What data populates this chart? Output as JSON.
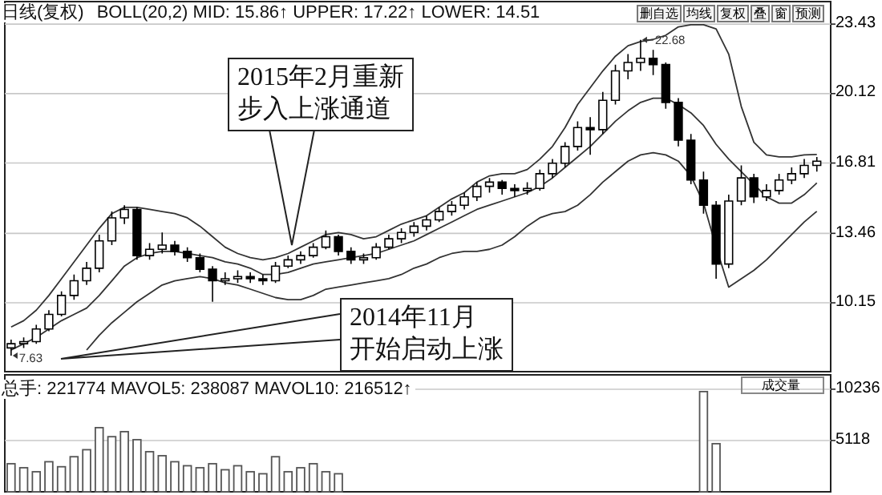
{
  "chart_data": [
    {
      "type": "candlestick",
      "title": "日线(复权)",
      "subtitle": "BOLL(20,2) MID: 15.86↑ UPPER: 17.22↑ LOWER: 14.51",
      "color": "#000000",
      "categories": [
        null,
        null,
        null,
        null,
        null,
        null,
        null,
        null,
        null,
        null,
        null,
        null,
        null,
        null,
        null,
        null,
        null,
        null,
        null,
        null,
        null,
        null,
        null,
        null,
        null,
        null,
        null,
        null,
        null,
        null,
        null,
        null,
        null,
        null,
        null,
        null,
        null,
        null,
        null,
        null,
        null,
        null,
        null,
        null,
        null,
        null,
        null,
        null,
        null,
        null,
        null,
        null,
        null,
        null,
        null,
        null,
        null,
        null,
        null,
        null,
        null,
        null,
        null,
        null,
        null
      ],
      "ohlc": [
        [
          8.0,
          8.4,
          7.63,
          8.2
        ],
        [
          8.2,
          8.5,
          8.0,
          8.3
        ],
        [
          8.3,
          9.1,
          8.2,
          8.9
        ],
        [
          8.9,
          9.8,
          8.8,
          9.6
        ],
        [
          9.6,
          10.7,
          9.5,
          10.5
        ],
        [
          10.5,
          11.5,
          10.3,
          11.2
        ],
        [
          11.2,
          12.1,
          11.0,
          11.8
        ],
        [
          11.8,
          13.4,
          11.6,
          13.1
        ],
        [
          13.1,
          14.5,
          12.9,
          14.2
        ],
        [
          14.2,
          14.8,
          13.9,
          14.6
        ],
        [
          14.6,
          14.7,
          12.2,
          12.4
        ],
        [
          12.4,
          13.0,
          12.2,
          12.7
        ],
        [
          12.7,
          13.5,
          12.5,
          12.9
        ],
        [
          12.9,
          13.1,
          12.4,
          12.6
        ],
        [
          12.6,
          12.8,
          12.1,
          12.3
        ],
        [
          12.3,
          12.5,
          11.6,
          11.75
        ],
        [
          11.75,
          11.9,
          10.2,
          11.2
        ],
        [
          11.2,
          11.6,
          11.0,
          11.3
        ],
        [
          11.3,
          11.7,
          11.1,
          11.4
        ],
        [
          11.4,
          11.6,
          11.1,
          11.3
        ],
        [
          11.3,
          11.5,
          11.0,
          11.2
        ],
        [
          11.2,
          12.1,
          11.1,
          11.9
        ],
        [
          11.9,
          12.4,
          11.8,
          12.2
        ],
        [
          12.2,
          12.6,
          12.0,
          12.4
        ],
        [
          12.4,
          13.0,
          12.3,
          12.8
        ],
        [
          12.8,
          13.6,
          12.7,
          13.3
        ],
        [
          13.3,
          13.4,
          12.4,
          12.6
        ],
        [
          12.6,
          12.8,
          12.0,
          12.2
        ],
        [
          12.2,
          12.5,
          12.0,
          12.3
        ],
        [
          12.3,
          13.0,
          12.2,
          12.8
        ],
        [
          12.8,
          13.4,
          12.7,
          13.2
        ],
        [
          13.2,
          13.7,
          13.0,
          13.5
        ],
        [
          13.5,
          14.0,
          13.3,
          13.8
        ],
        [
          13.8,
          14.3,
          13.6,
          14.1
        ],
        [
          14.1,
          14.7,
          14.0,
          14.5
        ],
        [
          14.5,
          15.0,
          14.3,
          14.8
        ],
        [
          14.8,
          15.4,
          14.6,
          15.2
        ],
        [
          15.2,
          15.9,
          15.0,
          15.7
        ],
        [
          15.7,
          16.1,
          15.4,
          15.9
        ],
        [
          15.9,
          16.0,
          15.3,
          15.6
        ],
        [
          15.6,
          15.8,
          15.2,
          15.5
        ],
        [
          15.5,
          15.9,
          15.3,
          15.6
        ],
        [
          15.6,
          16.5,
          15.5,
          16.3
        ],
        [
          16.3,
          17.0,
          16.1,
          16.8
        ],
        [
          16.8,
          17.8,
          16.6,
          17.6
        ],
        [
          17.6,
          18.8,
          17.4,
          18.5
        ],
        [
          18.5,
          19.0,
          17.2,
          18.4
        ],
        [
          18.4,
          20.2,
          18.2,
          19.8
        ],
        [
          19.8,
          21.5,
          19.6,
          21.2
        ],
        [
          21.2,
          22.0,
          20.8,
          21.6
        ],
        [
          21.6,
          22.68,
          21.2,
          21.8
        ],
        [
          21.8,
          22.2,
          21.0,
          21.5
        ],
        [
          21.5,
          21.6,
          19.4,
          19.7
        ],
        [
          19.7,
          19.9,
          17.6,
          17.9
        ],
        [
          17.9,
          18.2,
          15.8,
          16.0
        ],
        [
          16.0,
          16.4,
          14.4,
          14.8
        ],
        [
          14.8,
          15.0,
          11.3,
          12.0
        ],
        [
          12.0,
          15.3,
          11.8,
          15.0
        ],
        [
          15.0,
          16.7,
          14.8,
          16.1
        ],
        [
          16.1,
          16.3,
          14.9,
          15.2
        ],
        [
          15.2,
          15.8,
          15.0,
          15.5
        ],
        [
          15.5,
          16.3,
          15.3,
          16.0
        ],
        [
          16.0,
          16.6,
          15.8,
          16.3
        ],
        [
          16.3,
          17.0,
          16.1,
          16.7
        ],
        [
          16.7,
          17.1,
          16.4,
          16.9
        ]
      ],
      "series": [
        {
          "type": "line",
          "color": "#333333",
          "values": [
            9.0,
            9.3,
            9.8,
            10.5,
            11.3,
            12.1,
            12.9,
            13.7,
            14.4,
            14.7,
            14.7,
            14.6,
            14.5,
            14.4,
            14.2,
            13.8,
            13.3,
            12.8,
            12.5,
            12.3,
            12.2,
            12.3,
            12.5,
            12.8,
            13.1,
            13.4,
            13.5,
            13.4,
            13.2,
            13.3,
            13.6,
            13.9,
            14.1,
            14.3,
            14.7,
            15.1,
            15.4,
            15.9,
            16.2,
            16.3,
            16.3,
            16.5,
            17.0,
            17.6,
            18.5,
            19.6,
            20.4,
            21.2,
            21.9,
            22.4,
            22.6,
            22.7,
            22.9,
            23.3,
            23.4,
            23.4,
            23.2,
            22.0,
            19.5,
            17.8,
            17.2,
            17.1,
            17.1,
            17.2,
            17.22
          ]
        },
        {
          "type": "line",
          "color": "#333333",
          "values": [
            7.9,
            8.2,
            8.5,
            8.9,
            9.3,
            9.6,
            9.9,
            10.5,
            11.2,
            11.9,
            12.3,
            12.5,
            12.6,
            12.6,
            12.5,
            12.4,
            12.3,
            12.1,
            12.0,
            11.8,
            11.5,
            11.5,
            11.6,
            11.8,
            12.0,
            12.1,
            12.2,
            12.3,
            12.4,
            12.5,
            12.7,
            12.9,
            13.1,
            13.4,
            13.7,
            14.0,
            14.3,
            14.6,
            14.8,
            15.0,
            15.2,
            15.4,
            15.7,
            16.1,
            16.6,
            17.1,
            17.6,
            18.2,
            18.8,
            19.3,
            19.7,
            19.9,
            19.9,
            19.6,
            19.2,
            18.6,
            17.7,
            17.0,
            16.4,
            15.8,
            15.2,
            14.9,
            14.9,
            15.3,
            15.86
          ]
        },
        {
          "type": "line",
          "color": "#333333",
          "values": [
            null,
            null,
            null,
            null,
            null,
            null,
            7.9,
            8.6,
            9.2,
            9.7,
            10.2,
            10.6,
            11.0,
            11.2,
            11.3,
            11.4,
            11.3,
            11.1,
            11.0,
            10.8,
            10.6,
            10.4,
            10.3,
            10.3,
            10.5,
            10.8,
            10.9,
            11.0,
            11.1,
            11.2,
            11.3,
            11.5,
            11.8,
            12.0,
            12.3,
            12.5,
            12.6,
            12.6,
            12.7,
            12.9,
            13.3,
            13.8,
            14.2,
            14.4,
            14.5,
            14.8,
            15.3,
            15.9,
            16.4,
            16.9,
            17.2,
            17.3,
            17.2,
            16.9,
            16.2,
            14.9,
            12.8,
            10.9,
            11.3,
            11.7,
            12.2,
            12.8,
            13.4,
            14.0,
            14.51
          ]
        }
      ],
      "ylim": [
        6.87,
        24.35
      ],
      "yticks": [
        10.15,
        13.46,
        16.81,
        20.12,
        23.43
      ],
      "grid": "y",
      "tick_labels": "y",
      "annotations": [
        "2015年2月重新",
        "步入上涨通道",
        "2014年11月",
        "开始启动上涨",
        {
          "text": "22.68",
          "y": 22.68
        },
        "7.63",
        "删自选",
        "均线",
        "复权",
        "叠",
        "窗",
        "预测"
      ]
    },
    {
      "type": "bar",
      "title": "总手: 221774 MAVOL5: 238087 MAVOL10: 216512↑",
      "color": "#555555",
      "categories": [
        null,
        null,
        null,
        null,
        null,
        null,
        null,
        null,
        null,
        null,
        null,
        null,
        null,
        null,
        null,
        null,
        null,
        null,
        null,
        null,
        null,
        null,
        null,
        null,
        null,
        null,
        null,
        null,
        null,
        null,
        null,
        null,
        null,
        null,
        null,
        null,
        null,
        null,
        null,
        null,
        null,
        null,
        null,
        null,
        null,
        null,
        null,
        null,
        null,
        null,
        null,
        null,
        null,
        null,
        null,
        null,
        null,
        null,
        null,
        null,
        null,
        null,
        null,
        null,
        null
      ],
      "values": [
        2800,
        2400,
        2000,
        3000,
        2500,
        3500,
        4200,
        6400,
        5500,
        6000,
        5200,
        4000,
        3600,
        3000,
        2600,
        2400,
        2800,
        2200,
        2600,
        2000,
        1800,
        3500,
        2000,
        2400,
        2800,
        2000,
        1800,
        null,
        null,
        null,
        null,
        null,
        null,
        null,
        null,
        null,
        null,
        null,
        null,
        null,
        null,
        null,
        null,
        null,
        null,
        null,
        null,
        null,
        null,
        null,
        null,
        null,
        null,
        null,
        null,
        10000,
        4800,
        null,
        null,
        null,
        null,
        null,
        null,
        null,
        null
      ],
      "ylim": [
        0,
        11350
      ],
      "yticks": [
        5118,
        10236
      ],
      "grid": "y",
      "tick_labels": "y",
      "annotations": [
        "成交量"
      ]
    }
  ]
}
